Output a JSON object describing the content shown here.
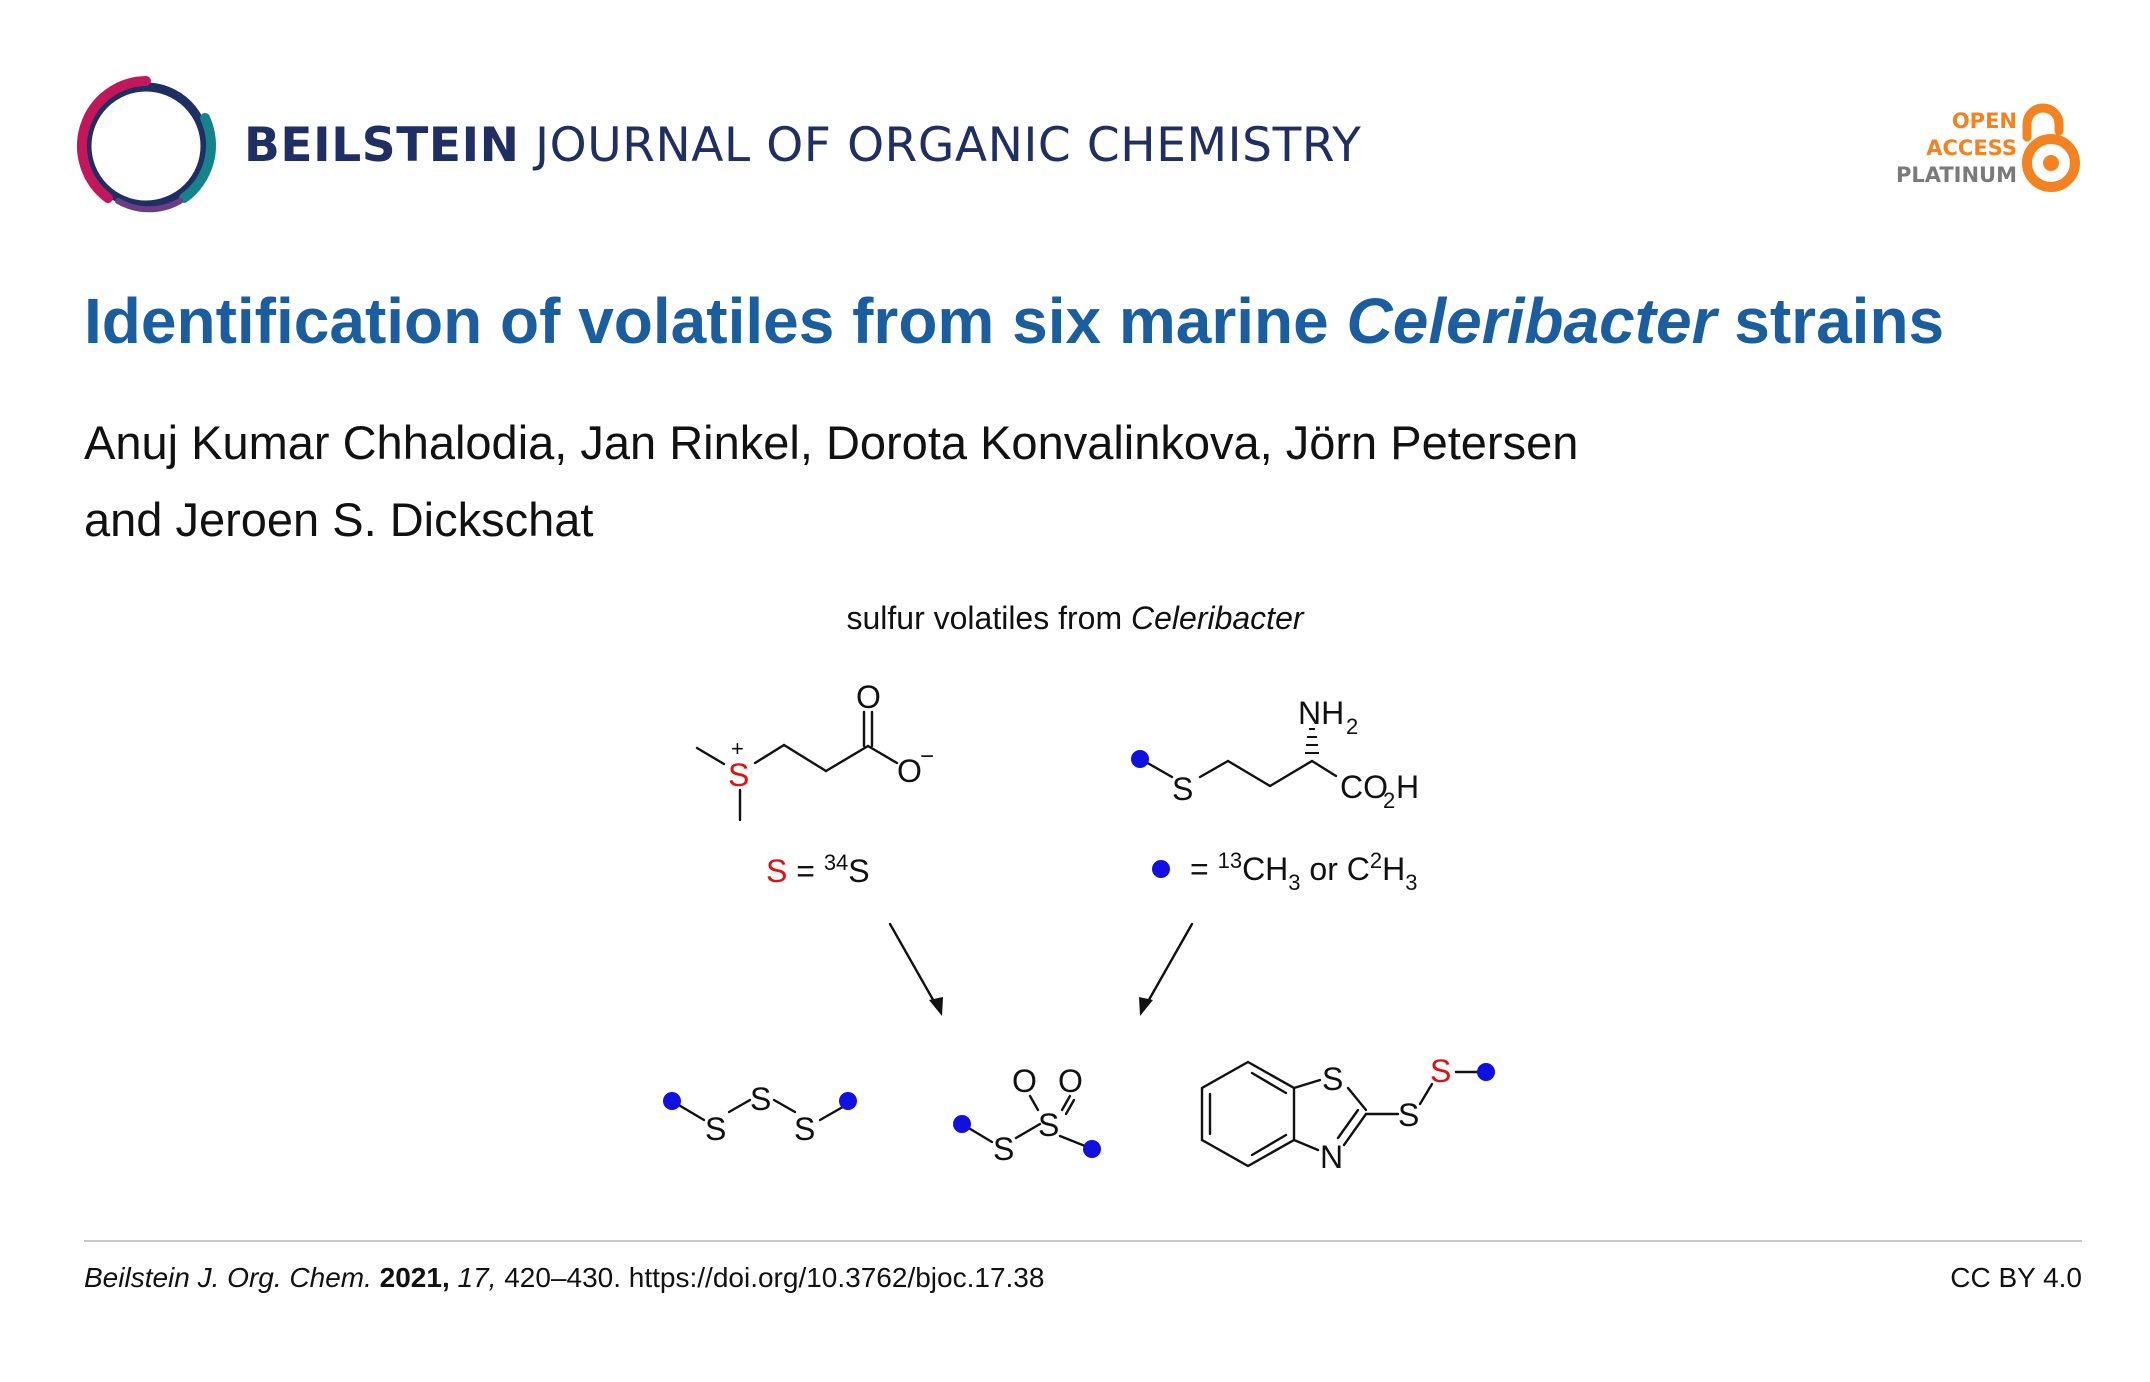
{
  "header": {
    "journal_bold": "BEILSTEIN",
    "journal_rest": " JOURNAL OF ORGANIC CHEMISTRY",
    "oa_line1": "OPEN",
    "oa_line2": "ACCESS",
    "oa_line3": "PLATINUM",
    "colors": {
      "navy": "#1f2e63",
      "magenta": "#c2185b",
      "teal": "#14838c",
      "orange": "#f58220"
    }
  },
  "article": {
    "title_pre": "Identification of volatiles from six marine ",
    "title_italic": "Celeribacter",
    "title_post": " strains",
    "authors_line1": "Anuj Kumar Chhalodia, Jan Rinkel, Dorota Konvalinkova, Jörn Petersen",
    "authors_line2": "and Jeroen S. Dickschat"
  },
  "graphic": {
    "caption_pre": "sulfur volatiles from ",
    "caption_italic": "Celeribacter",
    "legend_s_symbol": "S",
    "legend_s_eq": " = ",
    "legend_s_sup": "34",
    "legend_s_atom": "S",
    "legend_dot_eq": "= ",
    "legend_dot_sup1": "13",
    "legend_dot_mid1": "CH",
    "legend_dot_sub1": "3",
    "legend_dot_or": " or C",
    "legend_dot_sup2": "2",
    "legend_dot_mid2": "H",
    "legend_dot_sub2": "3",
    "atoms": {
      "S": "S",
      "O": "O",
      "N": "N",
      "plus": "+",
      "minus": "−",
      "nh": "NH",
      "two": "2",
      "co": "CO",
      "h": "H"
    },
    "colors": {
      "sulfur34": "#e31010",
      "label_dot": "#1010e0"
    }
  },
  "footer": {
    "journal_italic": "Beilstein J. Org. Chem.",
    "year": "2021,",
    "volume": "17,",
    "pages_doi": "420–430. https://doi.org/10.3762/bjoc.17.38",
    "license": "CC BY 4.0"
  }
}
